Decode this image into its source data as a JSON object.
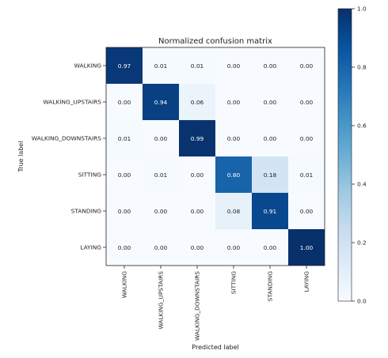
{
  "chart_data": {
    "type": "heatmap",
    "title": "Normalized confusion matrix",
    "xlabel": "Predicted label",
    "ylabel": "True label",
    "rows": [
      "WALKING",
      "WALKING_UPSTAIRS",
      "WALKING_DOWNSTAIRS",
      "SITTING",
      "STANDING",
      "LAYING"
    ],
    "columns": [
      "WALKING",
      "WALKING_UPSTAIRS",
      "WALKING_DOWNSTAIRS",
      "SITTING",
      "STANDING",
      "LAYING"
    ],
    "values": [
      [
        0.97,
        0.01,
        0.01,
        0.0,
        0.0,
        0.0
      ],
      [
        0.0,
        0.94,
        0.06,
        0.0,
        0.0,
        0.0
      ],
      [
        0.01,
        0.0,
        0.99,
        0.0,
        0.0,
        0.0
      ],
      [
        0.0,
        0.01,
        0.0,
        0.8,
        0.18,
        0.01
      ],
      [
        0.0,
        0.0,
        0.0,
        0.08,
        0.91,
        0.0
      ],
      [
        0.0,
        0.0,
        0.0,
        0.0,
        0.0,
        1.0
      ]
    ],
    "value_format": "0.00",
    "colormap": "Blues",
    "colorbar": {
      "range": [
        0.0,
        1.0
      ],
      "ticks": [
        "0.0",
        "0.2",
        "0.4",
        "0.6",
        "0.8",
        "1.0"
      ],
      "placement": "right"
    },
    "label_colors": {
      "dark_cells": "#ffffff",
      "light_cells": "#222222"
    },
    "grid": false
  }
}
